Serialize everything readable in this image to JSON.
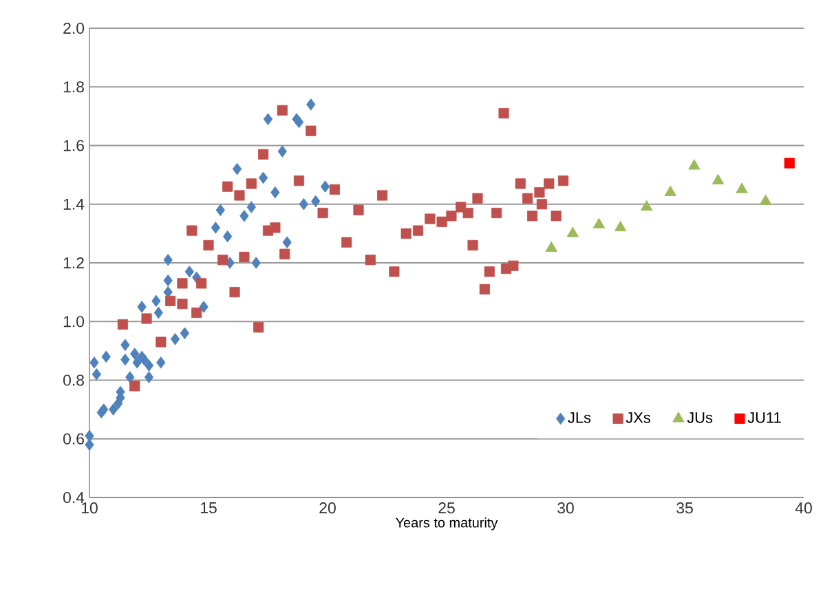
{
  "chart_data": {
    "type": "scatter",
    "xlabel": "Years to maturity",
    "xlim": [
      10,
      40
    ],
    "xticks": [
      10,
      15,
      20,
      25,
      30,
      35,
      40
    ],
    "ylim": [
      0.4,
      2.0
    ],
    "yticks": [
      {
        "value": 0.4,
        "label": "0.4"
      },
      {
        "value": 0.6,
        "label": "0.6"
      },
      {
        "value": 0.8,
        "label": "0.8"
      },
      {
        "value": 1.0,
        "label": "1.0"
      },
      {
        "value": 1.2,
        "label": "1.2"
      },
      {
        "value": 1.4,
        "label": "1.4"
      },
      {
        "value": 1.6,
        "label": "1.6"
      },
      {
        "value": 1.8,
        "label": "1.8"
      },
      {
        "value": 2.0,
        "label": "2.0"
      }
    ],
    "grid": "y",
    "legend": "bottom right",
    "series": [
      {
        "name": "JLs",
        "color": "#4f81bd",
        "marker": "diamond",
        "x": [
          10.0,
          10.0,
          10.2,
          10.3,
          10.7,
          10.5,
          10.6,
          11.0,
          11.2,
          11.3,
          11.3,
          11.5,
          11.5,
          11.9,
          12.0,
          12.2,
          12.3,
          12.5,
          13.0,
          12.5,
          11.7,
          12.2,
          12.8,
          12.9,
          13.3,
          13.3,
          13.6,
          14.0,
          14.8,
          13.3,
          14.2,
          14.5,
          15.9,
          17.0,
          15.3,
          15.8,
          15.5,
          16.5,
          16.8,
          16.2,
          17.3,
          17.8,
          18.3,
          19.0,
          19.5,
          19.9,
          17.5,
          18.7,
          18.8,
          19.3,
          18.1
        ],
        "values": [
          0.61,
          0.58,
          0.86,
          0.82,
          0.88,
          0.69,
          0.7,
          0.7,
          0.72,
          0.74,
          0.76,
          0.92,
          0.87,
          0.89,
          0.86,
          0.88,
          0.87,
          0.81,
          0.86,
          0.85,
          0.81,
          1.05,
          1.07,
          1.03,
          1.1,
          1.14,
          0.94,
          0.96,
          1.05,
          1.21,
          1.17,
          1.15,
          1.2,
          1.2,
          1.32,
          1.29,
          1.38,
          1.36,
          1.39,
          1.52,
          1.49,
          1.44,
          1.27,
          1.4,
          1.41,
          1.46,
          1.69,
          1.69,
          1.68,
          1.74,
          1.58
        ]
      },
      {
        "name": "JXs",
        "color": "#c0504d",
        "marker": "square",
        "x": [
          11.4,
          11.9,
          12.4,
          13.0,
          13.4,
          13.9,
          14.5,
          17.1,
          14.3,
          15.0,
          15.6,
          16.5,
          17.5,
          17.8,
          18.2,
          15.8,
          16.3,
          16.8,
          17.3,
          18.1,
          18.8,
          19.3,
          19.8,
          20.3,
          20.8,
          13.9,
          14.7,
          16.1,
          22.3,
          21.3,
          21.8,
          22.8,
          23.3,
          23.8,
          24.3,
          24.8,
          25.2,
          25.6,
          25.9,
          26.3,
          27.1,
          26.1,
          26.8,
          26.6,
          27.5,
          27.8,
          27.4,
          28.1,
          28.4,
          28.9,
          29.3,
          29.9,
          28.6,
          29.0,
          29.6
        ],
        "values": [
          0.99,
          0.78,
          1.01,
          0.93,
          1.07,
          1.06,
          1.03,
          0.98,
          1.31,
          1.26,
          1.21,
          1.22,
          1.31,
          1.32,
          1.23,
          1.46,
          1.43,
          1.47,
          1.57,
          1.72,
          1.48,
          1.65,
          1.37,
          1.45,
          1.27,
          1.13,
          1.13,
          1.1,
          1.43,
          1.38,
          1.21,
          1.17,
          1.3,
          1.31,
          1.35,
          1.34,
          1.36,
          1.39,
          1.37,
          1.42,
          1.37,
          1.26,
          1.17,
          1.11,
          1.18,
          1.19,
          1.71,
          1.47,
          1.42,
          1.44,
          1.47,
          1.48,
          1.36,
          1.4,
          1.36
        ]
      },
      {
        "name": "JUs",
        "color": "#9bbb59",
        "marker": "triangle",
        "x": [
          29.4,
          30.3,
          31.4,
          32.3,
          33.4,
          34.4,
          35.4,
          36.4,
          37.4,
          38.4
        ],
        "values": [
          1.25,
          1.3,
          1.33,
          1.32,
          1.39,
          1.44,
          1.53,
          1.48,
          1.45,
          1.41
        ]
      },
      {
        "name": "JU11",
        "color": "#ff0000",
        "marker": "square",
        "x": [
          39.4
        ],
        "values": [
          1.54
        ]
      }
    ]
  }
}
